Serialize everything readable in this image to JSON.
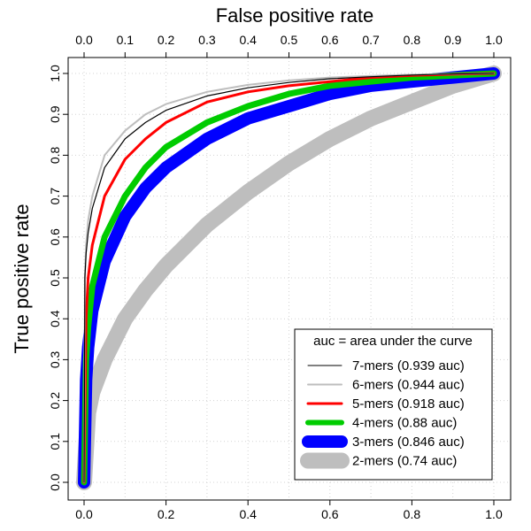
{
  "chart_data": {
    "type": "line",
    "title": "",
    "xlabel": "False positive rate",
    "ylabel": "True positive rate",
    "xlim": [
      0,
      1
    ],
    "ylim": [
      0,
      1
    ],
    "grid": true,
    "x_ticks_top": [
      "0.0",
      "0.1",
      "0.2",
      "0.3",
      "0.4",
      "0.5",
      "0.6",
      "0.7",
      "0.8",
      "0.9",
      "1.0"
    ],
    "x_ticks_bottom": [
      "0.0",
      "0.2",
      "0.4",
      "0.6",
      "0.8",
      "1.0"
    ],
    "y_ticks": [
      "0.0",
      "0.1",
      "0.2",
      "0.3",
      "0.4",
      "0.5",
      "0.6",
      "0.7",
      "0.8",
      "0.9",
      "1.0"
    ],
    "legend": {
      "title": "auc = area under the curve",
      "position": "bottom-right"
    },
    "series": [
      {
        "name": "2-mers (0.74 auc)",
        "color": "#bebebe",
        "x": [
          0,
          0.01,
          0.02,
          0.05,
          0.1,
          0.15,
          0.2,
          0.3,
          0.4,
          0.5,
          0.6,
          0.7,
          0.8,
          0.9,
          1.0
        ],
        "y": [
          0,
          0.17,
          0.22,
          0.3,
          0.4,
          0.47,
          0.53,
          0.63,
          0.71,
          0.78,
          0.84,
          0.89,
          0.93,
          0.97,
          1.0
        ]
      },
      {
        "name": "3-mers (0.846 auc)",
        "color": "#0000ff",
        "x": [
          0,
          0.005,
          0.01,
          0.02,
          0.05,
          0.1,
          0.15,
          0.2,
          0.3,
          0.4,
          0.5,
          0.6,
          0.7,
          0.8,
          0.9,
          1.0
        ],
        "y": [
          0,
          0.25,
          0.33,
          0.42,
          0.54,
          0.65,
          0.72,
          0.77,
          0.84,
          0.89,
          0.92,
          0.95,
          0.97,
          0.98,
          0.99,
          1.0
        ]
      },
      {
        "name": "4-mers (0.88 auc)",
        "color": "#00cc00",
        "x": [
          0,
          0.005,
          0.01,
          0.02,
          0.05,
          0.1,
          0.15,
          0.2,
          0.3,
          0.4,
          0.5,
          0.6,
          0.7,
          0.8,
          0.9,
          1.0
        ],
        "y": [
          0,
          0.3,
          0.38,
          0.48,
          0.6,
          0.7,
          0.77,
          0.82,
          0.88,
          0.92,
          0.95,
          0.97,
          0.98,
          0.99,
          0.995,
          1.0
        ]
      },
      {
        "name": "5-mers (0.918 auc)",
        "color": "#ff0000",
        "x": [
          0,
          0.005,
          0.01,
          0.02,
          0.05,
          0.1,
          0.15,
          0.2,
          0.3,
          0.4,
          0.5,
          0.6,
          0.7,
          0.8,
          0.9,
          1.0
        ],
        "y": [
          0,
          0.4,
          0.5,
          0.58,
          0.7,
          0.79,
          0.84,
          0.88,
          0.93,
          0.955,
          0.97,
          0.98,
          0.99,
          0.995,
          0.998,
          1.0
        ]
      },
      {
        "name": "6-mers (0.944 auc)",
        "color": "#bebebe",
        "x": [
          0,
          0.002,
          0.005,
          0.01,
          0.02,
          0.05,
          0.1,
          0.15,
          0.2,
          0.3,
          0.4,
          0.5,
          0.6,
          0.7,
          0.8,
          0.9,
          1.0
        ],
        "y": [
          0,
          0.5,
          0.58,
          0.64,
          0.7,
          0.8,
          0.86,
          0.9,
          0.925,
          0.955,
          0.972,
          0.983,
          0.99,
          0.994,
          0.997,
          0.999,
          1.0
        ]
      },
      {
        "name": "7-mers (0.939 auc)",
        "color": "#000000",
        "x": [
          0,
          0.002,
          0.005,
          0.01,
          0.02,
          0.05,
          0.1,
          0.15,
          0.2,
          0.3,
          0.4,
          0.5,
          0.6,
          0.7,
          0.8,
          0.9,
          1.0
        ],
        "y": [
          0,
          0.5,
          0.56,
          0.61,
          0.67,
          0.77,
          0.84,
          0.88,
          0.91,
          0.945,
          0.965,
          0.978,
          0.987,
          0.992,
          0.996,
          0.999,
          1.0
        ]
      }
    ],
    "legend_order": [
      5,
      4,
      3,
      2,
      1,
      0
    ]
  }
}
